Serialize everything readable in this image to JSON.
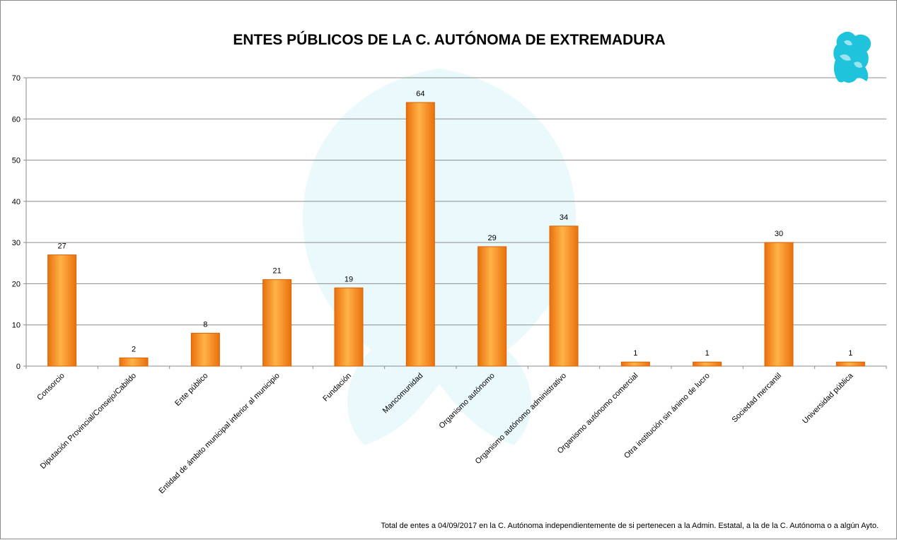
{
  "title": "ENTES PÚBLICOS DE LA C. AUTÓNOMA DE EXTREMADURA",
  "footnote": "Total de entes  a 04/09/2017 en  la C. Autónoma  independientemente  de  si pertenecen  a la Admin. Estatal, a la de la C. Autónoma  o a algún Ayto.",
  "logo_icon": "griffin-logo-icon",
  "colors": {
    "bar": "#f7941d",
    "bar_dark": "#e9700c",
    "grid": "#8c8c8c",
    "logo": "#1fc4dc"
  },
  "chart_data": {
    "type": "bar",
    "title": "ENTES PÚBLICOS DE LA C. AUTÓNOMA DE EXTREMADURA",
    "xlabel": "",
    "ylabel": "",
    "ylim": [
      0,
      70
    ],
    "yticks": [
      0,
      10,
      20,
      30,
      40,
      50,
      60,
      70
    ],
    "grid": true,
    "legend": "none",
    "categories": [
      "Consorcio",
      "Diputación Provincial/Consejo/Cabildo",
      "Ente público",
      "Entidad de ámbito municipal inferior al municipio",
      "Fundación",
      "Mancomunidad",
      "Organismo autónomo",
      "Organismo autónomo administrativo",
      "Organismo autónomo comercial",
      "Otra institución sin ánimo de lucro",
      "Sociedad mercantil",
      "Universidad pública"
    ],
    "values": [
      27,
      2,
      8,
      21,
      19,
      64,
      29,
      34,
      1,
      1,
      30,
      1
    ]
  }
}
